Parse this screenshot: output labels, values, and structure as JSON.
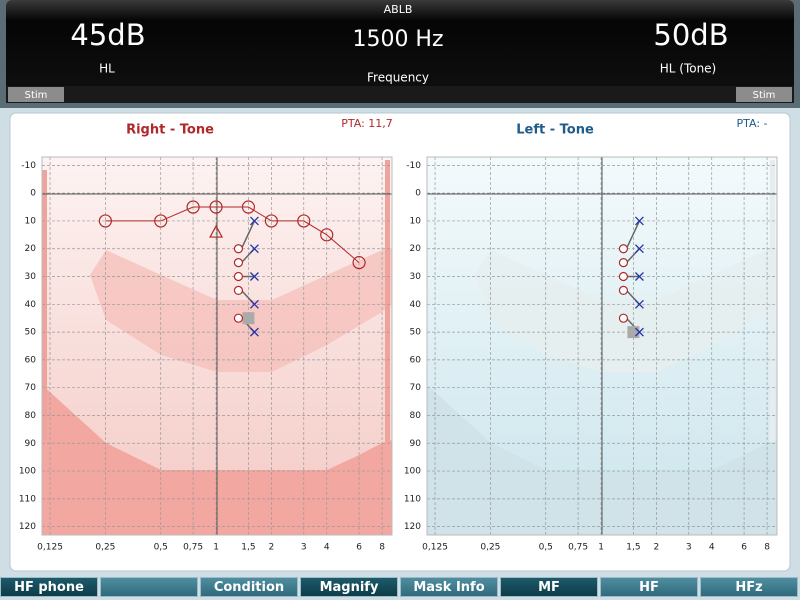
{
  "header": {
    "test": "ABLB",
    "left_level": "45dB",
    "left_unit": "HL",
    "frequency": "1500 Hz",
    "frequency_label": "Frequency",
    "right_level": "50dB",
    "right_unit": "HL (Tone)",
    "stim_left": "Stim",
    "stim_right": "Stim"
  },
  "charts": [
    {
      "type": "audiogram",
      "title": "Right - Tone",
      "pta": "PTA: 11,7",
      "color": "#b0282a",
      "xlim": [
        0.113,
        9.06
      ],
      "ylim": [
        -13,
        123
      ],
      "xticks": [
        {
          "value": 0.125,
          "label": "0,125"
        },
        {
          "value": 0.25,
          "label": "0,25"
        },
        {
          "value": 0.5,
          "label": "0,5"
        },
        {
          "value": 0.75,
          "label": "0,75"
        },
        1,
        {
          "value": 1.5,
          "label": "1,5"
        },
        2,
        3,
        4,
        6,
        8
      ],
      "yticks": [
        -10,
        0,
        10,
        20,
        30,
        40,
        50,
        60,
        70,
        80,
        90,
        100,
        110,
        120
      ],
      "thresholds": {
        "x": [
          0.25,
          0.5,
          0.75,
          1,
          1.5,
          2,
          3,
          4,
          6
        ],
        "values": [
          10,
          10,
          5,
          5,
          5,
          10,
          10,
          15,
          25
        ]
      },
      "masked": {
        "x": [
          1
        ],
        "values": [
          14
        ]
      }
    },
    {
      "type": "audiogram",
      "title": "Left - Tone",
      "pta": "PTA:  -",
      "color": "#1f5c8a",
      "xlim": [
        0.113,
        9.06
      ],
      "ylim": [
        -13,
        123
      ],
      "xticks": [
        {
          "value": 0.125,
          "label": "0,125"
        },
        {
          "value": 0.25,
          "label": "0,25"
        },
        {
          "value": 0.5,
          "label": "0,5"
        },
        {
          "value": 0.75,
          "label": "0,75"
        },
        1,
        {
          "value": 1.5,
          "label": "1,5"
        },
        2,
        3,
        4,
        6,
        8
      ],
      "yticks": [
        -10,
        0,
        10,
        20,
        30,
        40,
        50,
        60,
        70,
        80,
        90,
        100,
        110,
        120
      ]
    }
  ],
  "ablb": {
    "x": 1.5,
    "right": [
      20,
      25,
      30,
      35,
      45
    ],
    "left": [
      10,
      20,
      30,
      40,
      50
    ]
  },
  "buttons": [
    "HF phone",
    "Condition",
    "Magnify",
    "Mask Info",
    "MF",
    "HF",
    "HFz"
  ]
}
